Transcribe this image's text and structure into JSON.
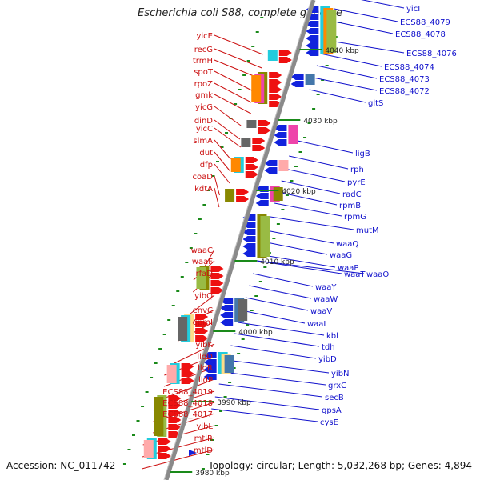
{
  "title": "Escherichia coli S88, complete genome",
  "footer": {
    "accession": "Accession: NC_011742",
    "summary": "Topology: circular; Length: 5,032,268 bp; Genes: 4,894"
  },
  "colors": {
    "left_label": "#cc1111",
    "right_label": "#1111cc",
    "backbone": "#8a8a8a",
    "tick": "#1a8a1a",
    "left_arrow": "#ee1111",
    "right_arrow": "#1122dd",
    "cog": [
      "#22ccdd",
      "#ff8800",
      "#ee44aa",
      "#888800",
      "#99bb44",
      "#ffdd88",
      "#4477aa",
      "#666666",
      "#ffaaaa"
    ]
  },
  "scale_labels": [
    {
      "text": "4040 kbp",
      "kbp": 4040
    },
    {
      "text": "4030 kbp",
      "kbp": 4030
    },
    {
      "text": "4020 kbp",
      "kbp": 4020
    },
    {
      "text": "4010 kbp",
      "kbp": 4010
    },
    {
      "text": "4000 kbp",
      "kbp": 4000
    },
    {
      "text": "3990 kbp",
      "kbp": 3990
    },
    {
      "text": "3980 kbp",
      "kbp": 3980
    }
  ],
  "left_genes": [
    "yicE",
    "recG",
    "trmH",
    "spoT",
    "rpoZ",
    "gmk",
    "yicG",
    "dinD",
    "yicC",
    "slmA",
    "dut",
    "dfp",
    "coaD",
    "kdtA",
    "waaC",
    "waaF",
    "rfaD",
    "yibQ",
    "envC",
    "gpmI",
    "yibK",
    "lldD",
    "lldR",
    "lldP",
    "ECS88_4019",
    "ECS88_4018",
    "ECS88_4017",
    "yibL",
    "mtlR",
    "mtlD"
  ],
  "right_genes": [
    "yicI",
    "ECS88_4079",
    "ECS88_4078",
    "ECS88_4076",
    "ECS88_4074",
    "ECS88_4073",
    "ECS88_4072",
    "gltS",
    "ligB",
    "rph",
    "pyrE",
    "radC",
    "rpmB",
    "rpmG",
    "mutM",
    "waaQ",
    "waaG",
    "waaP",
    "waaT",
    "waaO",
    "waaY",
    "waaW",
    "waaV",
    "waaL",
    "kbl",
    "tdh",
    "yibD",
    "yibN",
    "grxC",
    "secB",
    "gpsA",
    "cysE"
  ]
}
